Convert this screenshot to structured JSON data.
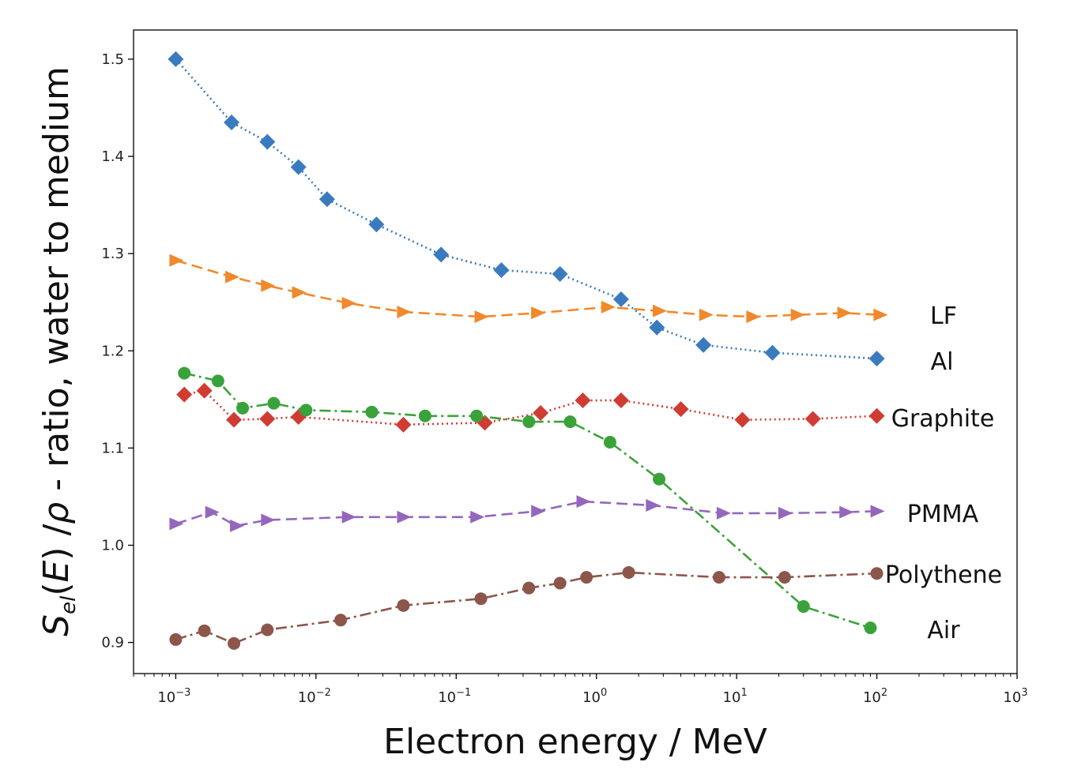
{
  "chart_data": {
    "type": "line",
    "title": "",
    "xlabel": "Electron energy / MeV",
    "ylabel": {
      "prefix_italic": "S",
      "subscript": "el",
      "middle": "(E) /",
      "rho": "ρ",
      "suffix": " - ratio, water to medium"
    },
    "xscale": "log",
    "xlim": [
      0.0005,
      1000
    ],
    "ylim": [
      0.868,
      1.53
    ],
    "xticks": [
      {
        "value": 0.001,
        "base": "10",
        "exp": "−3"
      },
      {
        "value": 0.01,
        "base": "10",
        "exp": "−2"
      },
      {
        "value": 0.1,
        "base": "10",
        "exp": "−1"
      },
      {
        "value": 1,
        "base": "10",
        "exp": "0"
      },
      {
        "value": 10,
        "base": "10",
        "exp": "1"
      },
      {
        "value": 100,
        "base": "10",
        "exp": "2"
      },
      {
        "value": 1000,
        "base": "10",
        "exp": "3"
      }
    ],
    "yticks": [
      {
        "value": 0.9,
        "label": "0.9"
      },
      {
        "value": 1.0,
        "label": "1.0"
      },
      {
        "value": 1.1,
        "label": "1.1"
      },
      {
        "value": 1.2,
        "label": "1.2"
      },
      {
        "value": 1.3,
        "label": "1.3"
      },
      {
        "value": 1.4,
        "label": "1.4"
      },
      {
        "value": 1.5,
        "label": "1.5"
      }
    ],
    "grid": false,
    "legend": "inline labels at right end of each series",
    "series": [
      {
        "name": "Al",
        "color": "#3a7bbf",
        "marker": "diamond",
        "linestyle": "dotted",
        "x": [
          0.001,
          0.0025,
          0.0045,
          0.0075,
          0.012,
          0.027,
          0.078,
          0.21,
          0.55,
          1.5,
          2.7,
          5.8,
          18,
          100
        ],
        "y": [
          1.5,
          1.435,
          1.415,
          1.389,
          1.356,
          1.33,
          1.299,
          1.283,
          1.279,
          1.253,
          1.224,
          1.206,
          1.198,
          1.192
        ]
      },
      {
        "name": "LF",
        "color": "#f0892c",
        "marker": "triangle-right",
        "linestyle": "dashed",
        "x": [
          0.001,
          0.0025,
          0.0045,
          0.0075,
          0.017,
          0.042,
          0.15,
          0.38,
          1.2,
          2.8,
          6.0,
          13,
          27,
          58,
          105
        ],
        "y": [
          1.293,
          1.276,
          1.267,
          1.26,
          1.249,
          1.24,
          1.235,
          1.239,
          1.245,
          1.241,
          1.237,
          1.235,
          1.237,
          1.239,
          1.237
        ]
      },
      {
        "name": "Graphite",
        "color": "#d03c32",
        "marker": "diamond",
        "linestyle": "dotted",
        "x": [
          0.00115,
          0.0016,
          0.0026,
          0.0045,
          0.0075,
          0.042,
          0.16,
          0.4,
          0.8,
          1.5,
          4.0,
          11,
          35,
          100
        ],
        "y": [
          1.155,
          1.159,
          1.129,
          1.13,
          1.132,
          1.124,
          1.126,
          1.136,
          1.149,
          1.149,
          1.14,
          1.129,
          1.13,
          1.133
        ]
      },
      {
        "name": "Air",
        "color": "#3aa23a",
        "marker": "circle",
        "linestyle": "dashdot",
        "x": [
          0.00115,
          0.002,
          0.003,
          0.005,
          0.0085,
          0.025,
          0.06,
          0.14,
          0.33,
          0.65,
          1.25,
          2.8,
          30,
          90
        ],
        "y": [
          1.177,
          1.169,
          1.141,
          1.146,
          1.139,
          1.137,
          1.133,
          1.133,
          1.127,
          1.127,
          1.106,
          1.068,
          0.937,
          0.915
        ]
      },
      {
        "name": "PMMA",
        "color": "#9467bd",
        "marker": "triangle-right",
        "linestyle": "dashed",
        "x": [
          0.001,
          0.0018,
          0.0027,
          0.0045,
          0.017,
          0.042,
          0.14,
          0.38,
          0.8,
          2.5,
          8,
          22,
          60,
          100
        ],
        "y": [
          1.022,
          1.034,
          1.02,
          1.026,
          1.029,
          1.029,
          1.029,
          1.035,
          1.045,
          1.041,
          1.033,
          1.033,
          1.034,
          1.035
        ]
      },
      {
        "name": "Polythene",
        "color": "#8c564b",
        "marker": "circle",
        "linestyle": "dashdot",
        "x": [
          0.001,
          0.0016,
          0.0026,
          0.0045,
          0.015,
          0.042,
          0.15,
          0.33,
          0.55,
          0.85,
          1.7,
          7.5,
          22,
          100
        ],
        "y": [
          0.903,
          0.912,
          0.899,
          0.913,
          0.923,
          0.938,
          0.945,
          0.956,
          0.961,
          0.967,
          0.972,
          0.967,
          0.967,
          0.971
        ]
      }
    ]
  }
}
